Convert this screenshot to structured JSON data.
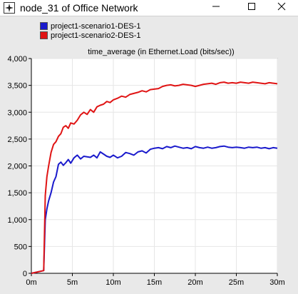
{
  "window": {
    "title": "node_31 of Office Network"
  },
  "colors": {
    "series1": "#1a1acc",
    "series2": "#e01414",
    "plot_bg": "#ffffff",
    "frame_bg": "#e9e9e9"
  },
  "chart_data": {
    "type": "line",
    "title": "time_average (in Ethernet.Load (bits/sec))",
    "xlabel": "",
    "ylabel": "",
    "xlim": [
      0,
      30
    ],
    "ylim": [
      0,
      4000
    ],
    "x_ticks": [
      0,
      5,
      10,
      15,
      20,
      25,
      30
    ],
    "x_tick_labels": [
      "0m",
      "5m",
      "10m",
      "15m",
      "20m",
      "25m",
      "30m"
    ],
    "y_ticks": [
      0,
      500,
      1000,
      1500,
      2000,
      2500,
      3000,
      3500,
      4000
    ],
    "y_tick_labels": [
      "0",
      "500",
      "1,000",
      "1,500",
      "2,000",
      "2,500",
      "3,000",
      "3,500",
      "4,000"
    ],
    "legend_position": "top-left",
    "series": [
      {
        "name": "project1-scenario1-DES-1",
        "color": "#1a1acc",
        "x": [
          0,
          1.5,
          1.7,
          1.9,
          2.1,
          2.4,
          2.7,
          3.0,
          3.3,
          3.6,
          3.9,
          4.2,
          4.5,
          4.8,
          5.2,
          5.6,
          6.0,
          6.4,
          6.8,
          7.2,
          7.6,
          8.0,
          8.4,
          8.8,
          9.2,
          9.6,
          10.0,
          10.5,
          11.0,
          11.5,
          12.0,
          12.5,
          13.0,
          13.5,
          14.0,
          14.5,
          15.0,
          15.5,
          16.0,
          16.5,
          17.0,
          17.5,
          18.0,
          18.5,
          19.0,
          19.5,
          20.0,
          20.5,
          21.0,
          21.5,
          22.0,
          22.5,
          23.0,
          23.5,
          24.0,
          24.5,
          25.0,
          25.5,
          26.0,
          26.5,
          27.0,
          27.5,
          28.0,
          28.5,
          29.0,
          29.5,
          30.0
        ],
        "y": [
          0,
          50,
          1000,
          1200,
          1350,
          1500,
          1700,
          1800,
          2030,
          2070,
          2010,
          2060,
          2120,
          2050,
          2150,
          2200,
          2130,
          2180,
          2170,
          2160,
          2200,
          2150,
          2260,
          2220,
          2180,
          2160,
          2200,
          2150,
          2180,
          2250,
          2230,
          2200,
          2260,
          2280,
          2240,
          2310,
          2330,
          2340,
          2320,
          2360,
          2340,
          2370,
          2350,
          2330,
          2340,
          2320,
          2360,
          2340,
          2330,
          2350,
          2330,
          2340,
          2360,
          2370,
          2350,
          2340,
          2350,
          2340,
          2330,
          2350,
          2340,
          2350,
          2330,
          2340,
          2320,
          2340,
          2330
        ]
      },
      {
        "name": "project1-scenario2-DES-1",
        "color": "#e01414",
        "x": [
          0,
          1.5,
          1.7,
          1.9,
          2.1,
          2.4,
          2.7,
          3.0,
          3.3,
          3.6,
          3.9,
          4.2,
          4.5,
          4.8,
          5.2,
          5.6,
          6.0,
          6.4,
          6.8,
          7.2,
          7.6,
          8.0,
          8.4,
          8.8,
          9.2,
          9.6,
          10.0,
          10.5,
          11.0,
          11.5,
          12.0,
          12.5,
          13.0,
          13.5,
          14.0,
          14.5,
          15.0,
          15.5,
          16.0,
          16.5,
          17.0,
          17.5,
          18.0,
          18.5,
          19.0,
          19.5,
          20.0,
          20.5,
          21.0,
          21.5,
          22.0,
          22.5,
          23.0,
          23.5,
          24.0,
          24.5,
          25.0,
          25.5,
          26.0,
          26.5,
          27.0,
          27.5,
          28.0,
          28.5,
          29.0,
          29.5,
          30.0
        ],
        "y": [
          0,
          50,
          1450,
          1800,
          2000,
          2250,
          2400,
          2450,
          2550,
          2600,
          2720,
          2750,
          2700,
          2800,
          2780,
          2850,
          2950,
          3000,
          2960,
          3050,
          3000,
          3100,
          3130,
          3150,
          3200,
          3180,
          3230,
          3260,
          3300,
          3280,
          3330,
          3350,
          3370,
          3400,
          3380,
          3420,
          3430,
          3440,
          3480,
          3500,
          3510,
          3490,
          3500,
          3520,
          3510,
          3500,
          3480,
          3500,
          3520,
          3530,
          3540,
          3520,
          3550,
          3560,
          3540,
          3550,
          3540,
          3560,
          3550,
          3540,
          3560,
          3550,
          3540,
          3530,
          3550,
          3540,
          3530
        ]
      }
    ]
  }
}
